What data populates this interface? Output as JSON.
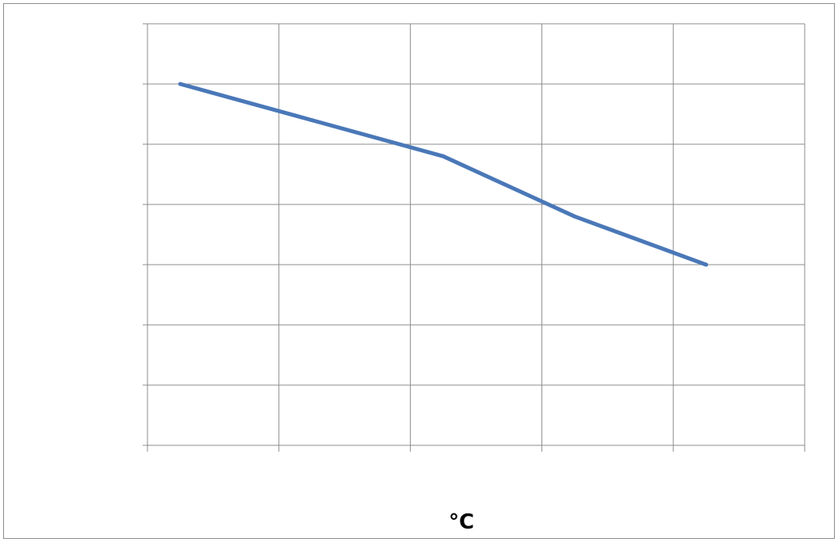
{
  "colors": {
    "series": "#4a78b8",
    "grid": "#8c8c8c",
    "background": "#ffffff"
  },
  "chart_data": {
    "type": "line",
    "title": "",
    "xlabel": "°C",
    "ylabel": "",
    "x_tick_count": 5,
    "y_divisions": 7,
    "grid": true,
    "legend": "none",
    "series": [
      {
        "x": [
          0,
          1,
          2,
          3,
          4
        ],
        "values": [
          6.0,
          5.4,
          4.8,
          3.8,
          3.0
        ],
        "color": "#4a78b8"
      }
    ],
    "xlim": [
      -0.25,
      4.75
    ],
    "ylim": [
      0,
      7
    ]
  }
}
